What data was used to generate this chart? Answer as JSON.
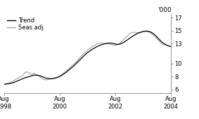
{
  "title": "",
  "ylabel_right": "'000",
  "xlim": [
    0,
    72
  ],
  "ylim": [
    5.5,
    17.5
  ],
  "yticks": [
    6,
    8,
    10,
    13,
    15,
    17
  ],
  "xtick_labels_shown": [
    "Aug\n1998",
    "Aug\n2000",
    "Aug\n2002",
    "Aug\n2004"
  ],
  "xtick_positions_shown": [
    0,
    24,
    48,
    72
  ],
  "legend_trend": "Trend",
  "legend_seas": "Seas adj.",
  "trend_color": "#000000",
  "seas_color": "#aaaaaa",
  "background_color": "#ffffff",
  "trend_linewidth": 0.9,
  "seas_linewidth": 0.9,
  "trend": [
    6.8,
    6.85,
    6.9,
    6.95,
    7.05,
    7.2,
    7.35,
    7.5,
    7.65,
    7.8,
    7.9,
    8.0,
    8.1,
    8.2,
    8.2,
    8.15,
    8.05,
    7.9,
    7.75,
    7.7,
    7.65,
    7.68,
    7.75,
    7.85,
    8.0,
    8.2,
    8.45,
    8.7,
    9.0,
    9.3,
    9.6,
    9.95,
    10.3,
    10.65,
    11.0,
    11.35,
    11.65,
    11.9,
    12.15,
    12.35,
    12.55,
    12.7,
    12.85,
    12.95,
    13.05,
    13.1,
    13.1,
    13.05,
    12.95,
    12.9,
    12.95,
    13.1,
    13.3,
    13.55,
    13.8,
    14.05,
    14.28,
    14.48,
    14.65,
    14.78,
    14.88,
    14.93,
    14.92,
    14.82,
    14.62,
    14.35,
    14.0,
    13.6,
    13.25,
    13.0,
    12.8,
    12.65,
    12.55
  ],
  "seas": [
    6.8,
    6.9,
    7.0,
    7.1,
    7.3,
    7.55,
    7.75,
    7.95,
    8.1,
    8.6,
    8.7,
    8.5,
    8.3,
    8.5,
    8.3,
    8.1,
    7.8,
    7.55,
    7.5,
    7.55,
    7.6,
    7.65,
    7.7,
    7.9,
    8.1,
    8.3,
    8.6,
    8.9,
    9.2,
    9.55,
    9.85,
    10.2,
    10.6,
    11.0,
    11.35,
    11.7,
    12.0,
    12.3,
    12.55,
    12.75,
    12.95,
    13.05,
    13.15,
    13.0,
    13.1,
    13.0,
    12.9,
    12.8,
    12.75,
    12.85,
    13.1,
    13.45,
    13.8,
    14.15,
    14.5,
    14.7,
    14.75,
    14.65,
    14.7,
    14.7,
    14.85,
    14.9,
    14.85,
    14.7,
    14.4,
    14.1,
    13.7,
    13.35,
    13.0,
    12.85,
    12.75,
    12.65,
    12.55
  ]
}
